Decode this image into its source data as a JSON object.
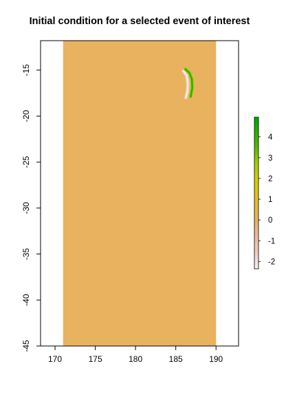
{
  "chart_data": {
    "type": "heatmap",
    "title": "Initial condition for a selected event of interest",
    "xlabel": "",
    "ylabel": "",
    "x_ticks": [
      170,
      175,
      180,
      185,
      190
    ],
    "y_ticks": [
      -15,
      -20,
      -25,
      -30,
      -35,
      -40,
      -45
    ],
    "xlim": [
      168.2,
      192.8
    ],
    "ylim": [
      -45,
      -11.8
    ],
    "raster_extent": {
      "x": [
        171,
        190
      ],
      "y": [
        -45,
        -11.8
      ]
    },
    "background_value": 0,
    "feature": {
      "description_values": "elevated band along a curved trench",
      "positive_curve": [
        [
          186.2,
          -14.9
        ],
        [
          186.7,
          -15.3
        ],
        [
          187.0,
          -16.0
        ],
        [
          187.05,
          -16.9
        ],
        [
          186.85,
          -17.9
        ]
      ],
      "positive_value": 4.2,
      "negative_curve": [
        [
          185.95,
          -15.1
        ],
        [
          186.35,
          -15.6
        ],
        [
          186.5,
          -16.4
        ],
        [
          186.45,
          -17.3
        ],
        [
          186.25,
          -18.0
        ]
      ],
      "negative_value": -2.2
    },
    "colorbar": {
      "ticks": [
        4,
        3,
        2,
        1,
        0,
        -1,
        -2
      ],
      "range": [
        -2.35,
        4.95
      ],
      "stops": [
        {
          "value": -2.35,
          "color": "#f2f2f2"
        },
        {
          "value": -1.5,
          "color": "#f0c9c0"
        },
        {
          "value": -0.6,
          "color": "#ecb89a"
        },
        {
          "value": 0.0,
          "color": "#e8b25f"
        },
        {
          "value": 0.6,
          "color": "#e5bb3c"
        },
        {
          "value": 1.3,
          "color": "#dcc41a"
        },
        {
          "value": 2.0,
          "color": "#cfd000"
        },
        {
          "value": 2.8,
          "color": "#9bd000"
        },
        {
          "value": 3.6,
          "color": "#52b800"
        },
        {
          "value": 4.95,
          "color": "#00a600"
        }
      ]
    },
    "grid": false,
    "legend_position": "right"
  }
}
